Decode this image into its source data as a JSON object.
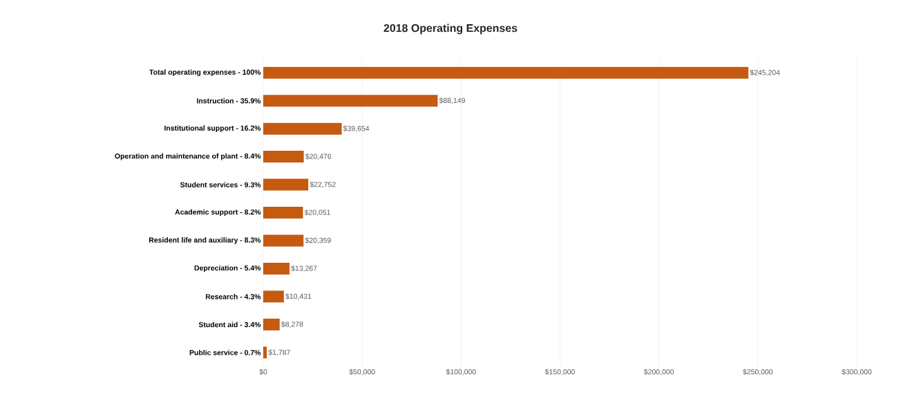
{
  "chart_data": {
    "type": "bar",
    "orientation": "horizontal",
    "title": "2018 Operating Expenses",
    "categories": [
      "Total operating expenses - 100%",
      "Instruction - 35.9%",
      "Institutional support - 16.2%",
      "Operation and maintenance of plant - 8.4%",
      "Student services - 9.3%",
      "Academic support - 8.2%",
      "Resident life and auxiliary - 8.3%",
      "Depreciation - 5.4%",
      "Research - 4.3%",
      "Student aid - 3.4%",
      "Public service - 0.7%"
    ],
    "values": [
      245204,
      88149,
      39654,
      20476,
      22752,
      20051,
      20359,
      13267,
      10431,
      8278,
      1787
    ],
    "value_labels": [
      "$245,204",
      "$88,149",
      "$39,654",
      "$20,476",
      "$22,752",
      "$20,051",
      "$20,359",
      "$13,267",
      "$10,431",
      "$8,278",
      "$1,787"
    ],
    "color": "#c55a11",
    "xlim": [
      0,
      300000
    ],
    "xticks": [
      {
        "value": 0,
        "label": "$0"
      },
      {
        "value": 50000,
        "label": "$50,000"
      },
      {
        "value": 100000,
        "label": "$100,000"
      },
      {
        "value": 150000,
        "label": "$150,000"
      },
      {
        "value": 200000,
        "label": "$200,000"
      },
      {
        "value": 250000,
        "label": "$250,000"
      },
      {
        "value": 300000,
        "label": "$300,000"
      }
    ],
    "grid": "x"
  }
}
